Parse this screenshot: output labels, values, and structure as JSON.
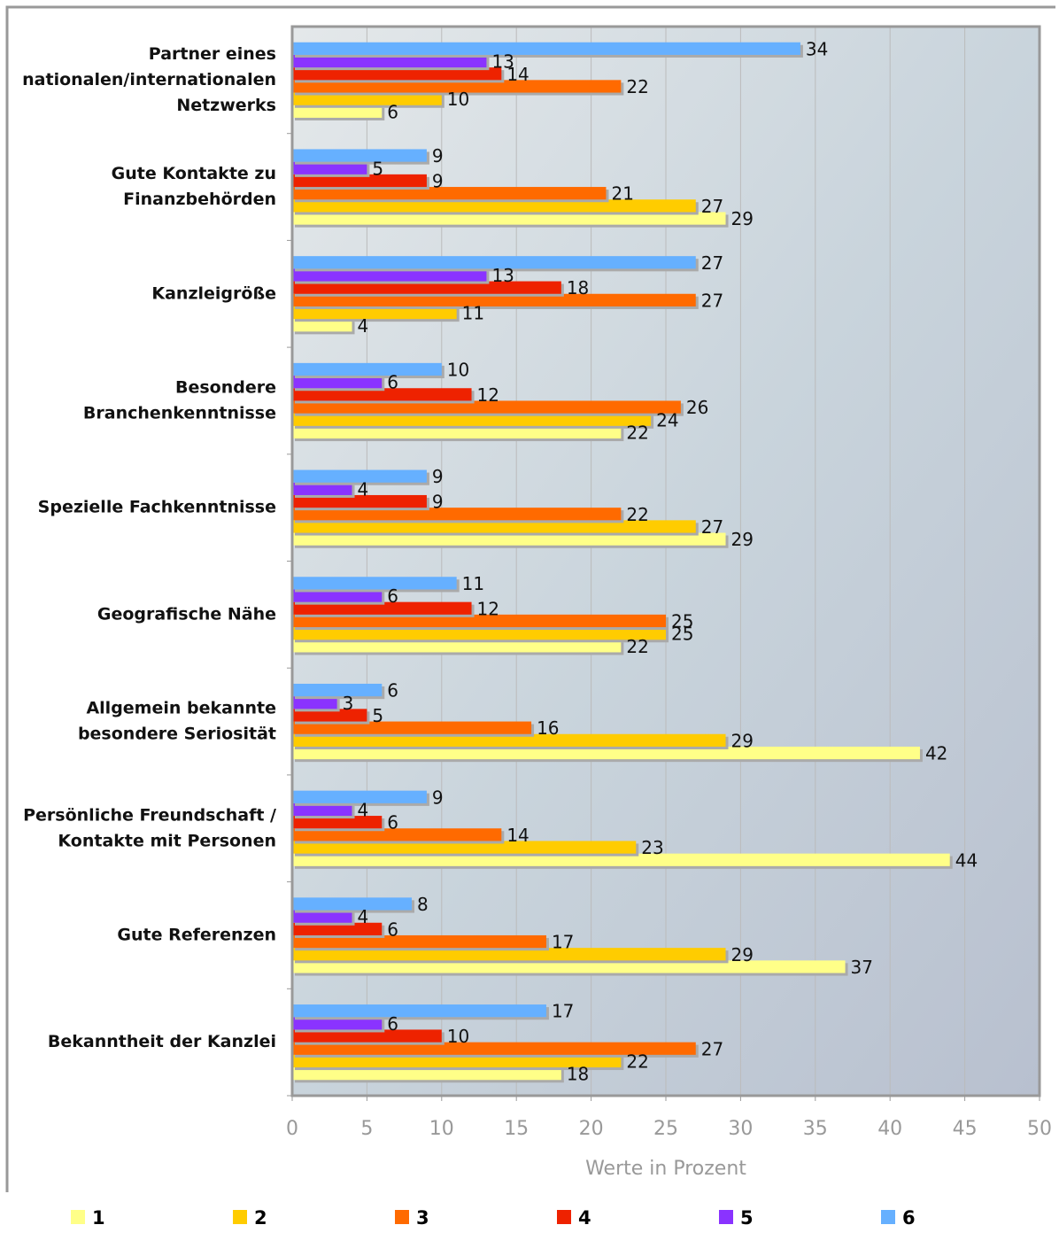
{
  "chart_data": {
    "type": "bar",
    "orientation": "horizontal",
    "categories": [
      [
        "Partner eines",
        "nationalen/internationalen",
        "Netzwerks"
      ],
      [
        "Gute Kontakte zu",
        "Finanzbehörden"
      ],
      [
        "Kanzleigröße"
      ],
      [
        "Besondere",
        "Branchenkenntnisse"
      ],
      [
        "Spezielle Fachkenntnisse"
      ],
      [
        "Geografische Nähe"
      ],
      [
        "Allgemein bekannte",
        "besondere Seriosität"
      ],
      [
        "Persönliche Freundschaft /",
        "Kontakte mit  Personen"
      ],
      [
        "Gute Referenzen"
      ],
      [
        "Bekanntheit der Kanzlei"
      ]
    ],
    "series": [
      {
        "name": "1",
        "color": "#ffff88",
        "values": [
          6,
          29,
          4,
          22,
          29,
          22,
          42,
          44,
          37,
          18
        ]
      },
      {
        "name": "2",
        "color": "#ffcc00",
        "values": [
          10,
          27,
          11,
          24,
          27,
          25,
          29,
          23,
          29,
          22
        ]
      },
      {
        "name": "3",
        "color": "#ff6a00",
        "values": [
          22,
          21,
          27,
          26,
          22,
          25,
          16,
          14,
          17,
          27
        ]
      },
      {
        "name": "4",
        "color": "#ee2200",
        "values": [
          14,
          9,
          18,
          12,
          9,
          12,
          5,
          6,
          6,
          10
        ]
      },
      {
        "name": "5",
        "color": "#8a33ff",
        "values": [
          13,
          5,
          13,
          6,
          4,
          6,
          3,
          4,
          4,
          6
        ]
      },
      {
        "name": "6",
        "color": "#66b0ff",
        "values": [
          34,
          9,
          27,
          10,
          9,
          11,
          6,
          9,
          8,
          17
        ]
      }
    ],
    "xlabel": "Werte in Prozent",
    "xlim": [
      0,
      50
    ],
    "xticks": [
      0,
      5,
      10,
      15,
      20,
      25,
      30,
      35,
      40,
      45,
      50
    ],
    "grid": true,
    "legend": "bottom"
  }
}
